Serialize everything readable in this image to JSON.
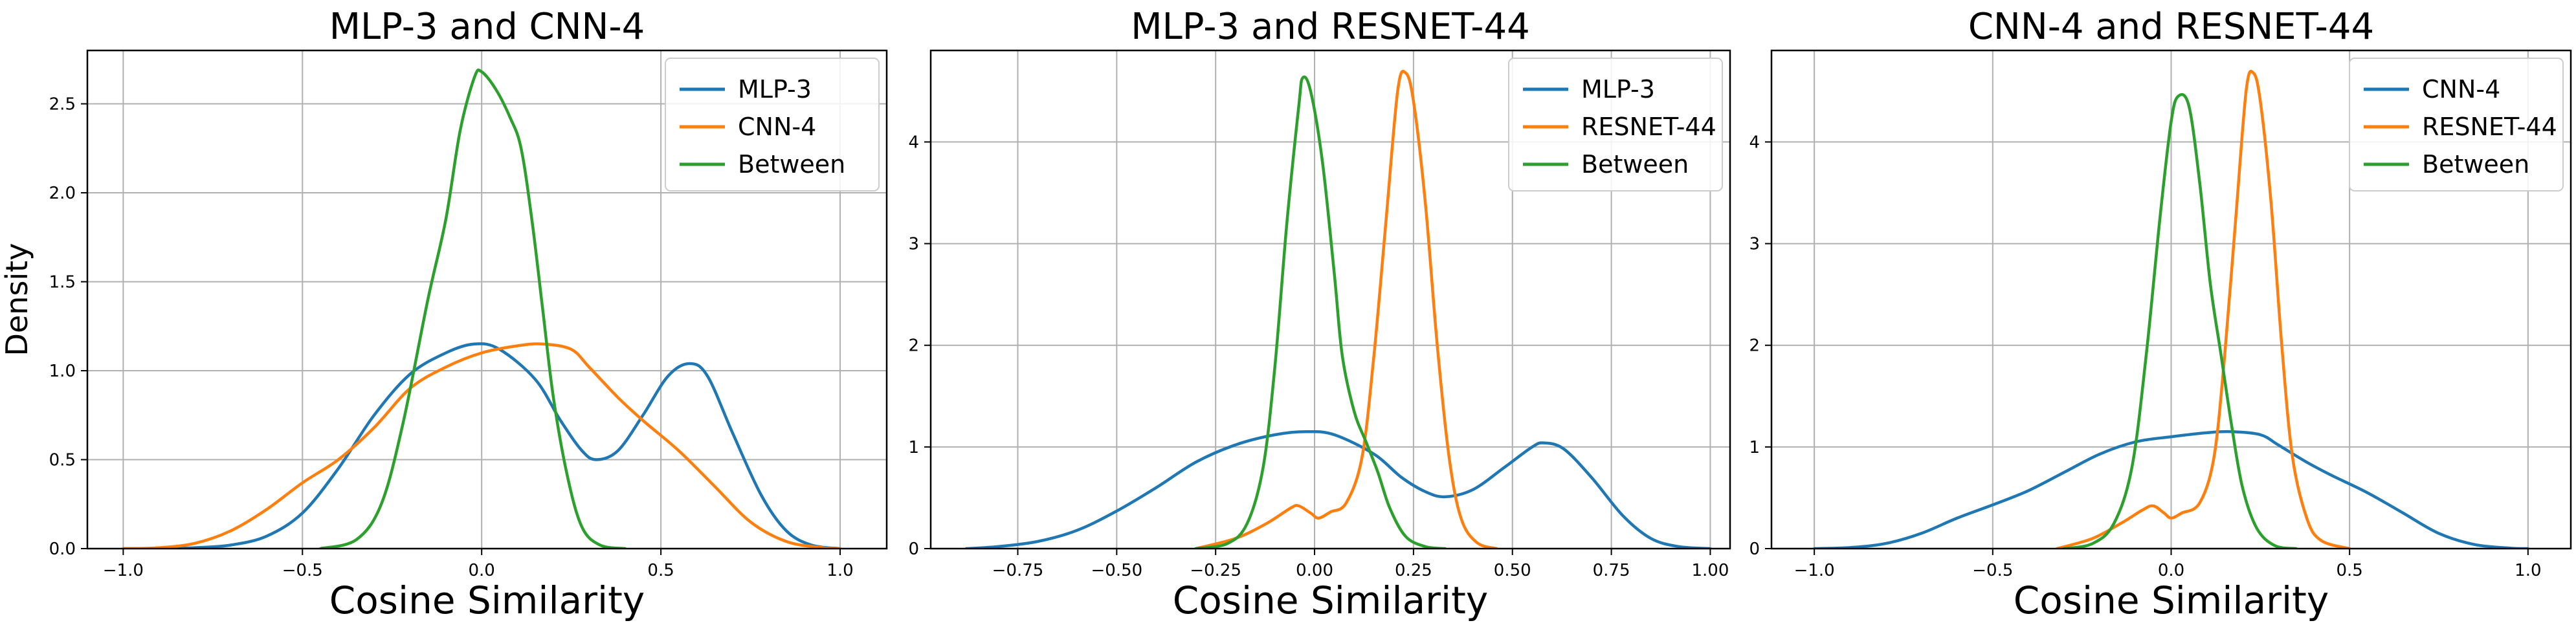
{
  "figure": {
    "colors": {
      "series_1": "#1f77b4",
      "series_2": "#ff7f0e",
      "series_3": "#2ca02c",
      "grid": "#b0b0b0"
    }
  },
  "chart_data": [
    {
      "type": "line",
      "title": "MLP-3 and CNN-4",
      "xlabel": "Cosine Similarity",
      "ylabel": "Density",
      "xlim": [
        -1.1,
        1.13
      ],
      "ylim": [
        0,
        2.8
      ],
      "xticks": [
        -1.0,
        -0.5,
        0.0,
        0.5,
        1.0
      ],
      "xtick_labels": [
        "−1.0",
        "−0.5",
        "0.0",
        "0.5",
        "1.0"
      ],
      "yticks": [
        0,
        0.5,
        1.0,
        1.5,
        2.0,
        2.5
      ],
      "ytick_labels": [
        "0.0",
        "0.5",
        "1.0",
        "1.5",
        "2.0",
        "2.5"
      ],
      "grid": true,
      "legend_position": "top-right",
      "series": [
        {
          "name": "MLP-3",
          "color": "#1f77b4",
          "points": [
            [
              -1.0,
              0.0
            ],
            [
              -0.9,
              0.0
            ],
            [
              -0.8,
              0.005
            ],
            [
              -0.7,
              0.02
            ],
            [
              -0.6,
              0.07
            ],
            [
              -0.5,
              0.2
            ],
            [
              -0.4,
              0.45
            ],
            [
              -0.3,
              0.75
            ],
            [
              -0.2,
              0.98
            ],
            [
              -0.1,
              1.1
            ],
            [
              -0.02,
              1.15
            ],
            [
              0.05,
              1.12
            ],
            [
              0.15,
              0.95
            ],
            [
              0.22,
              0.72
            ],
            [
              0.28,
              0.55
            ],
            [
              0.32,
              0.5
            ],
            [
              0.38,
              0.55
            ],
            [
              0.45,
              0.75
            ],
            [
              0.52,
              0.97
            ],
            [
              0.58,
              1.04
            ],
            [
              0.63,
              0.97
            ],
            [
              0.7,
              0.65
            ],
            [
              0.78,
              0.3
            ],
            [
              0.85,
              0.1
            ],
            [
              0.92,
              0.02
            ],
            [
              1.0,
              0.0
            ]
          ]
        },
        {
          "name": "CNN-4",
          "color": "#ff7f0e",
          "points": [
            [
              -1.0,
              0.0
            ],
            [
              -0.9,
              0.005
            ],
            [
              -0.8,
              0.03
            ],
            [
              -0.7,
              0.1
            ],
            [
              -0.6,
              0.22
            ],
            [
              -0.5,
              0.37
            ],
            [
              -0.4,
              0.5
            ],
            [
              -0.3,
              0.68
            ],
            [
              -0.2,
              0.9
            ],
            [
              -0.1,
              1.02
            ],
            [
              0.0,
              1.1
            ],
            [
              0.1,
              1.14
            ],
            [
              0.17,
              1.15
            ],
            [
              0.25,
              1.12
            ],
            [
              0.3,
              1.02
            ],
            [
              0.38,
              0.85
            ],
            [
              0.45,
              0.72
            ],
            [
              0.55,
              0.55
            ],
            [
              0.65,
              0.35
            ],
            [
              0.75,
              0.15
            ],
            [
              0.85,
              0.04
            ],
            [
              0.95,
              0.005
            ],
            [
              1.0,
              0.0
            ]
          ]
        },
        {
          "name": "Between",
          "color": "#2ca02c",
          "points": [
            [
              -0.45,
              0.0
            ],
            [
              -0.35,
              0.05
            ],
            [
              -0.28,
              0.25
            ],
            [
              -0.22,
              0.7
            ],
            [
              -0.15,
              1.4
            ],
            [
              -0.1,
              1.85
            ],
            [
              -0.06,
              2.35
            ],
            [
              -0.02,
              2.65
            ],
            [
              0.0,
              2.68
            ],
            [
              0.04,
              2.58
            ],
            [
              0.08,
              2.42
            ],
            [
              0.11,
              2.25
            ],
            [
              0.14,
              1.85
            ],
            [
              0.17,
              1.35
            ],
            [
              0.2,
              0.85
            ],
            [
              0.24,
              0.4
            ],
            [
              0.28,
              0.12
            ],
            [
              0.33,
              0.02
            ],
            [
              0.4,
              0.0
            ]
          ]
        }
      ]
    },
    {
      "type": "line",
      "title": "MLP-3 and RESNET-44",
      "xlabel": "Cosine Similarity",
      "ylabel": "",
      "xlim": [
        -0.97,
        1.05
      ],
      "ylim": [
        0,
        4.9
      ],
      "xticks": [
        -0.75,
        -0.5,
        -0.25,
        0.0,
        0.25,
        0.5,
        0.75,
        1.0
      ],
      "xtick_labels": [
        "−0.75",
        "−0.50",
        "−0.25",
        "0.00",
        "0.25",
        "0.50",
        "0.75",
        "1.00"
      ],
      "yticks": [
        0,
        1,
        2,
        3,
        4
      ],
      "ytick_labels": [
        "0",
        "1",
        "2",
        "3",
        "4"
      ],
      "grid": true,
      "legend_position": "top-right",
      "series": [
        {
          "name": "MLP-3",
          "color": "#1f77b4",
          "points": [
            [
              -0.88,
              0.0
            ],
            [
              -0.8,
              0.02
            ],
            [
              -0.7,
              0.07
            ],
            [
              -0.6,
              0.18
            ],
            [
              -0.5,
              0.37
            ],
            [
              -0.4,
              0.6
            ],
            [
              -0.3,
              0.85
            ],
            [
              -0.2,
              1.02
            ],
            [
              -0.1,
              1.12
            ],
            [
              -0.02,
              1.15
            ],
            [
              0.05,
              1.12
            ],
            [
              0.15,
              0.93
            ],
            [
              0.22,
              0.7
            ],
            [
              0.28,
              0.56
            ],
            [
              0.33,
              0.51
            ],
            [
              0.4,
              0.58
            ],
            [
              0.48,
              0.8
            ],
            [
              0.55,
              1.0
            ],
            [
              0.58,
              1.04
            ],
            [
              0.63,
              0.98
            ],
            [
              0.7,
              0.7
            ],
            [
              0.78,
              0.32
            ],
            [
              0.85,
              0.1
            ],
            [
              0.92,
              0.02
            ],
            [
              1.0,
              0.0
            ]
          ]
        },
        {
          "name": "RESNET-44",
          "color": "#ff7f0e",
          "points": [
            [
              -0.3,
              0.0
            ],
            [
              -0.2,
              0.1
            ],
            [
              -0.12,
              0.25
            ],
            [
              -0.06,
              0.4
            ],
            [
              -0.04,
              0.42
            ],
            [
              -0.01,
              0.35
            ],
            [
              0.01,
              0.3
            ],
            [
              0.04,
              0.36
            ],
            [
              0.08,
              0.45
            ],
            [
              0.12,
              0.9
            ],
            [
              0.15,
              1.9
            ],
            [
              0.18,
              3.2
            ],
            [
              0.21,
              4.5
            ],
            [
              0.23,
              4.68
            ],
            [
              0.25,
              4.4
            ],
            [
              0.28,
              3.4
            ],
            [
              0.31,
              2.0
            ],
            [
              0.34,
              0.9
            ],
            [
              0.37,
              0.3
            ],
            [
              0.41,
              0.06
            ],
            [
              0.46,
              0.0
            ]
          ]
        },
        {
          "name": "Between",
          "color": "#2ca02c",
          "points": [
            [
              -0.3,
              0.0
            ],
            [
              -0.22,
              0.05
            ],
            [
              -0.17,
              0.25
            ],
            [
              -0.13,
              0.8
            ],
            [
              -0.1,
              1.8
            ],
            [
              -0.07,
              3.2
            ],
            [
              -0.04,
              4.35
            ],
            [
              -0.03,
              4.63
            ],
            [
              -0.01,
              4.5
            ],
            [
              0.02,
              3.8
            ],
            [
              0.05,
              2.7
            ],
            [
              0.07,
              1.9
            ],
            [
              0.1,
              1.35
            ],
            [
              0.13,
              1.05
            ],
            [
              0.16,
              0.75
            ],
            [
              0.19,
              0.4
            ],
            [
              0.23,
              0.12
            ],
            [
              0.28,
              0.02
            ],
            [
              0.33,
              0.0
            ]
          ]
        }
      ]
    },
    {
      "type": "line",
      "title": "CNN-4 and RESNET-44",
      "xlabel": "Cosine Similarity",
      "ylabel": "",
      "xlim": [
        -1.12,
        1.12
      ],
      "ylim": [
        0,
        4.9
      ],
      "xticks": [
        -1.0,
        -0.5,
        0.0,
        0.5,
        1.0
      ],
      "xtick_labels": [
        "−1.0",
        "−0.5",
        "0.0",
        "0.5",
        "1.0"
      ],
      "yticks": [
        0,
        1,
        2,
        3,
        4
      ],
      "ytick_labels": [
        "0",
        "1",
        "2",
        "3",
        "4"
      ],
      "grid": true,
      "legend_position": "top-right",
      "series": [
        {
          "name": "CNN-4",
          "color": "#1f77b4",
          "points": [
            [
              -1.0,
              0.0
            ],
            [
              -0.9,
              0.01
            ],
            [
              -0.8,
              0.05
            ],
            [
              -0.7,
              0.15
            ],
            [
              -0.6,
              0.3
            ],
            [
              -0.5,
              0.43
            ],
            [
              -0.4,
              0.57
            ],
            [
              -0.3,
              0.75
            ],
            [
              -0.2,
              0.93
            ],
            [
              -0.1,
              1.05
            ],
            [
              0.0,
              1.1
            ],
            [
              0.1,
              1.14
            ],
            [
              0.17,
              1.15
            ],
            [
              0.25,
              1.12
            ],
            [
              0.3,
              1.02
            ],
            [
              0.38,
              0.85
            ],
            [
              0.45,
              0.72
            ],
            [
              0.55,
              0.55
            ],
            [
              0.65,
              0.35
            ],
            [
              0.75,
              0.15
            ],
            [
              0.85,
              0.04
            ],
            [
              0.95,
              0.005
            ],
            [
              1.0,
              0.0
            ]
          ]
        },
        {
          "name": "RESNET-44",
          "color": "#ff7f0e",
          "points": [
            [
              -0.32,
              0.0
            ],
            [
              -0.22,
              0.1
            ],
            [
              -0.14,
              0.25
            ],
            [
              -0.08,
              0.38
            ],
            [
              -0.05,
              0.42
            ],
            [
              -0.02,
              0.35
            ],
            [
              0.0,
              0.3
            ],
            [
              0.03,
              0.35
            ],
            [
              0.08,
              0.45
            ],
            [
              0.12,
              0.9
            ],
            [
              0.15,
              1.9
            ],
            [
              0.18,
              3.2
            ],
            [
              0.21,
              4.5
            ],
            [
              0.23,
              4.68
            ],
            [
              0.25,
              4.4
            ],
            [
              0.28,
              3.4
            ],
            [
              0.31,
              2.0
            ],
            [
              0.34,
              0.9
            ],
            [
              0.38,
              0.3
            ],
            [
              0.42,
              0.08
            ],
            [
              0.5,
              0.0
            ]
          ]
        },
        {
          "name": "Between",
          "color": "#2ca02c",
          "points": [
            [
              -0.3,
              0.0
            ],
            [
              -0.22,
              0.05
            ],
            [
              -0.16,
              0.25
            ],
            [
              -0.11,
              0.8
            ],
            [
              -0.07,
              1.9
            ],
            [
              -0.03,
              3.3
            ],
            [
              0.0,
              4.2
            ],
            [
              0.02,
              4.45
            ],
            [
              0.05,
              4.35
            ],
            [
              0.08,
              3.6
            ],
            [
              0.11,
              2.6
            ],
            [
              0.14,
              1.9
            ],
            [
              0.17,
              1.2
            ],
            [
              0.2,
              0.6
            ],
            [
              0.24,
              0.2
            ],
            [
              0.29,
              0.03
            ],
            [
              0.35,
              0.0
            ]
          ]
        }
      ]
    }
  ]
}
